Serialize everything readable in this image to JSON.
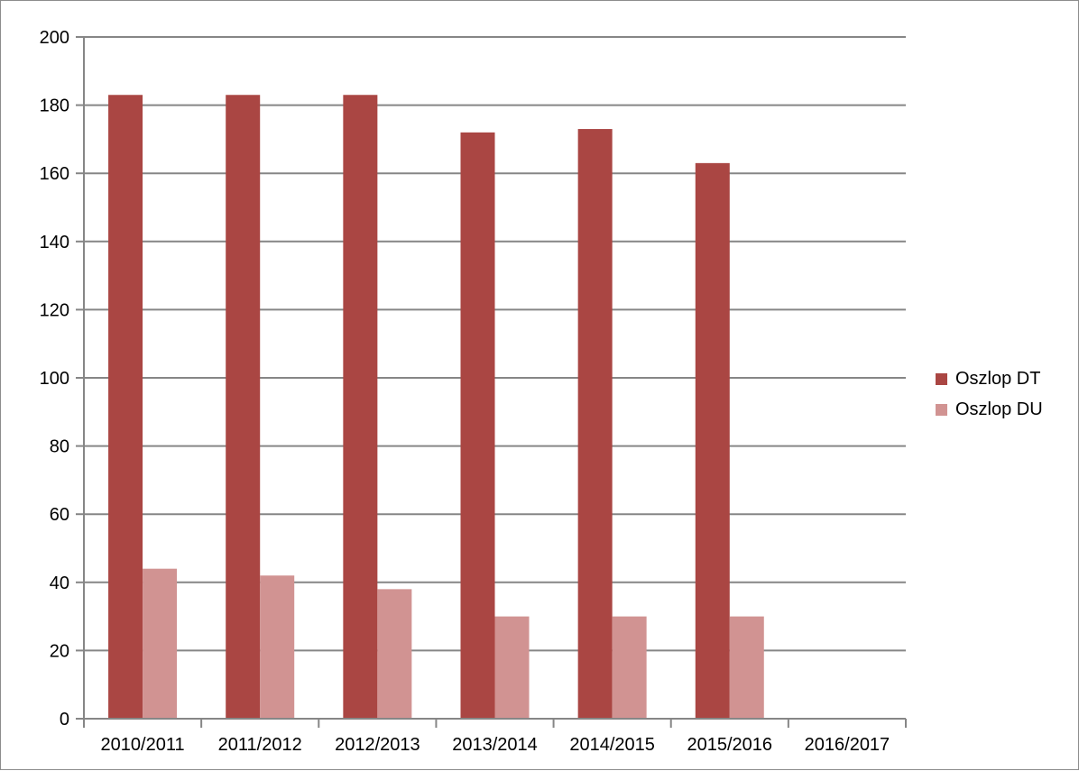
{
  "chart_data": {
    "type": "bar",
    "title": "",
    "xlabel": "",
    "ylabel": "",
    "categories": [
      "2010/2011",
      "2011/2012",
      "2012/2013",
      "2013/2014",
      "2014/2015",
      "2015/2016",
      "2016/2017"
    ],
    "series": [
      {
        "name": "Oszlop DT",
        "color": "#aa4643",
        "values": [
          183,
          183,
          183,
          172,
          173,
          163,
          null
        ]
      },
      {
        "name": "Oszlop DU",
        "color": "#d19392",
        "values": [
          44,
          42,
          38,
          30,
          30,
          30,
          null
        ]
      }
    ],
    "ylim": [
      0,
      200
    ],
    "yticks": [
      0,
      20,
      40,
      60,
      80,
      100,
      120,
      140,
      160,
      180,
      200
    ],
    "grid": true,
    "legend": "right",
    "gridline_color": "#868686"
  }
}
